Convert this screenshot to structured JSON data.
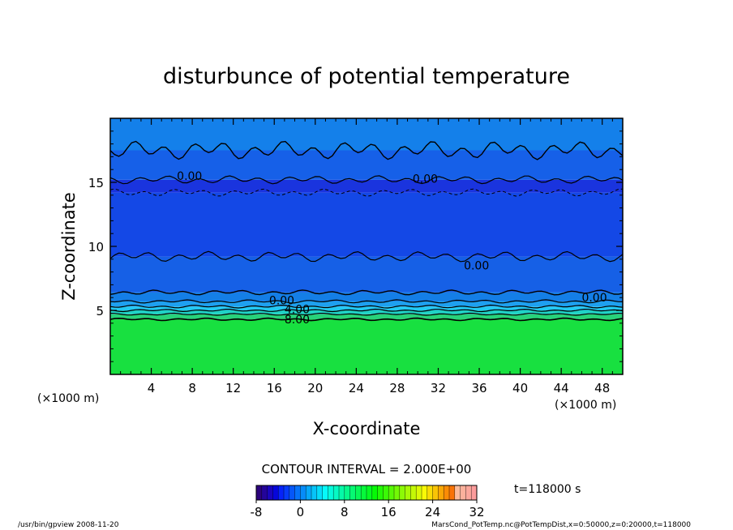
{
  "chart_data": {
    "type": "heatmap",
    "title": "disturbunce of potential temperature",
    "xlabel": "X-coordinate",
    "ylabel": "Z-coordinate",
    "x_unit_left": "(×1000 m)",
    "x_unit_right": "(×1000 m)",
    "xlim": [
      0,
      50
    ],
    "ylim": [
      0,
      20
    ],
    "x_ticks": [
      4,
      8,
      12,
      16,
      20,
      24,
      28,
      32,
      36,
      40,
      44,
      48
    ],
    "y_ticks": [
      5,
      10,
      15
    ],
    "contour_interval_text": "CONTOUR INTERVAL = 2.000E+00",
    "time_text": "t=118000 s",
    "colorbar": {
      "min": -8,
      "max": 32,
      "ticks": [
        -8,
        0,
        8,
        16,
        24,
        32
      ]
    },
    "bands": [
      {
        "z0": 0,
        "z1": 4.3,
        "value": 10,
        "color": "#18e040"
      },
      {
        "z0": 4.3,
        "z1": 4.7,
        "value": 8,
        "color": "#28d27a"
      },
      {
        "z0": 4.7,
        "z1": 5.0,
        "value": 6,
        "color": "#20d2c6"
      },
      {
        "z0": 5.0,
        "z1": 5.3,
        "value": 4,
        "color": "#22c8f2"
      },
      {
        "z0": 5.3,
        "z1": 5.7,
        "value": 2,
        "color": "#1ea0f0"
      },
      {
        "z0": 5.7,
        "z1": 6.4,
        "value": 0.5,
        "color": "#147ee6"
      },
      {
        "z0": 6.4,
        "z1": 9.2,
        "value": -0.8,
        "color": "#1660e6"
      },
      {
        "z0": 9.2,
        "z1": 14.2,
        "value": -1.2,
        "color": "#1448e6"
      },
      {
        "z0": 14.2,
        "z1": 15.2,
        "value": -2,
        "color": "#1a34de"
      },
      {
        "z0": 15.2,
        "z1": 17.5,
        "value": -0.8,
        "color": "#1660e8"
      },
      {
        "z0": 17.5,
        "z1": 20,
        "value": 0.3,
        "color": "#1480ea"
      }
    ],
    "contour_labels": [
      {
        "x": 6.5,
        "z": 15.5,
        "text": "0.00"
      },
      {
        "x": 29.5,
        "z": 15.3,
        "text": "0.00"
      },
      {
        "x": 34.5,
        "z": 8.5,
        "text": "0.00"
      },
      {
        "x": 15.5,
        "z": 5.8,
        "text": "0.00"
      },
      {
        "x": 46.0,
        "z": 6.0,
        "text": "0.00"
      },
      {
        "x": 17.0,
        "z": 5.1,
        "text": "4.00"
      },
      {
        "x": 17.0,
        "z": 4.3,
        "text": "8.00"
      }
    ],
    "footer_left": "/usr/bin/gpview   2008-11-20",
    "footer_right": "MarsCond_PotTemp.nc@PotTempDist,x=0:50000,z=0:20000,t=118000"
  }
}
